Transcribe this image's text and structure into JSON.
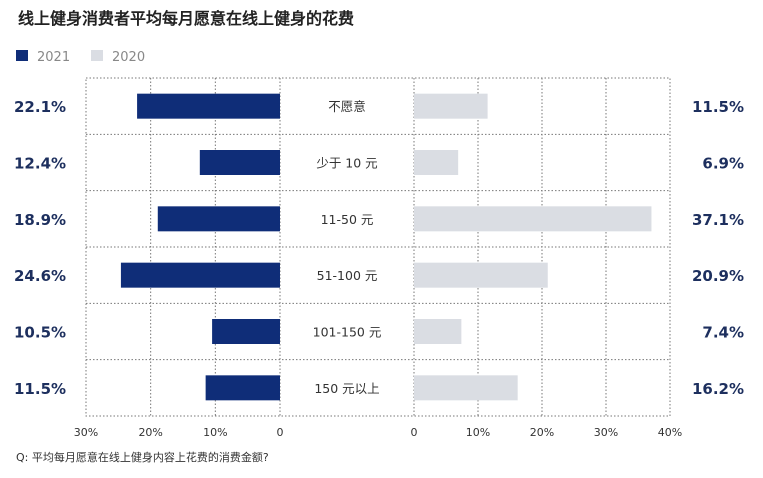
{
  "chart_data": {
    "type": "bar",
    "title": "线上健身消费者平均每月愿意在线上健身的花费",
    "footnote": "Q: 平均每月愿意在线上健身内容上花费的消费金额?",
    "categories": [
      "不愿意",
      "少于 10 元",
      "11-50 元",
      "51-100 元",
      "101-150 元",
      "150 元以上"
    ],
    "series": [
      {
        "name": "2021",
        "color": "#0f2d78",
        "values": [
          22.1,
          12.4,
          18.9,
          24.6,
          10.5,
          11.5
        ],
        "labels": [
          "22.1%",
          "12.4%",
          "18.9%",
          "24.6%",
          "10.5%",
          "11.5%"
        ]
      },
      {
        "name": "2020",
        "color": "#dadde3",
        "values": [
          11.5,
          6.9,
          37.1,
          20.9,
          7.4,
          16.2
        ],
        "labels": [
          "11.5%",
          "6.9%",
          "37.1%",
          "20.9%",
          "7.4%",
          "16.2%"
        ]
      }
    ],
    "left_axis": {
      "range": [
        30,
        0
      ],
      "ticks": [
        "30%",
        "20%",
        "10%",
        "0"
      ]
    },
    "right_axis": {
      "range": [
        0,
        40
      ],
      "ticks": [
        "0",
        "10%",
        "20%",
        "30%",
        "40%"
      ]
    },
    "grid": true,
    "legend_placement": "top-left",
    "label_color": "#1d2f5e"
  }
}
